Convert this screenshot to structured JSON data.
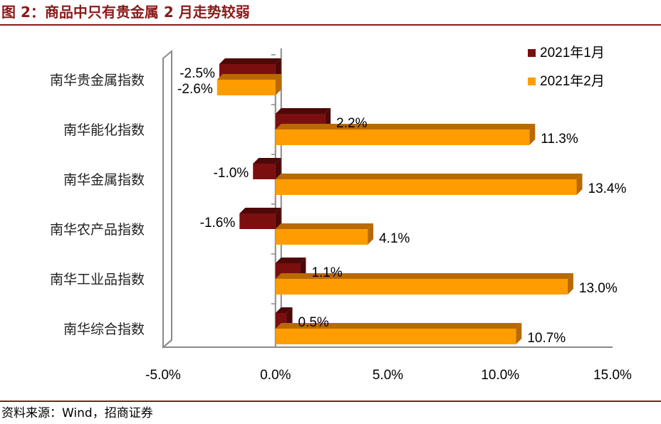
{
  "title": "图 2：商品中只有贵金属 2 月走势较弱",
  "source": "资料来源：Wind，招商证券",
  "colors": {
    "accent": "#8b1a1a",
    "series_jan": "#7b0f0f",
    "series_jan_side": "#4e0808",
    "series_feb": "#ff9d00",
    "series_feb_side": "#b86a00"
  },
  "chart_data": {
    "type": "bar",
    "orientation": "horizontal",
    "title": "",
    "xlabel": "",
    "ylabel": "",
    "categories": [
      "南华贵金属指数",
      "南华能化指数",
      "南华金属指数",
      "南华农产品指数",
      "南华工业品指数",
      "南华综合指数"
    ],
    "series": [
      {
        "name": "2021年1月",
        "values": [
          -2.5,
          2.2,
          -1.0,
          -1.6,
          1.1,
          0.5
        ],
        "labels": [
          "-2.5%",
          "2.2%",
          "-1.0%",
          "-1.6%",
          "1.1%",
          "0.5%"
        ]
      },
      {
        "name": "2021年2月",
        "values": [
          -2.6,
          11.3,
          13.4,
          4.1,
          13.0,
          10.7
        ],
        "labels": [
          "-2.6%",
          "11.3%",
          "13.4%",
          "4.1%",
          "13.0%",
          "10.7%"
        ]
      }
    ],
    "xlim": [
      -5.0,
      15.0
    ],
    "xticks": [
      "-5.0%",
      "0.0%",
      "5.0%",
      "10.0%",
      "15.0%"
    ],
    "legend": "top-right",
    "grid": false
  }
}
